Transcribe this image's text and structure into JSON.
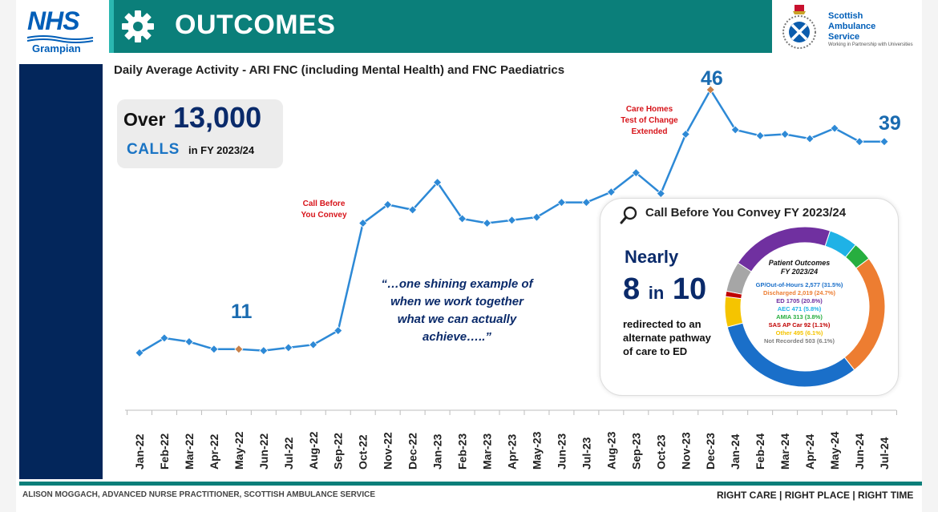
{
  "header": {
    "nhs_word": "NHS",
    "nhs_sub": "Grampian",
    "title": "OUTCOMES",
    "sas_name_lines": [
      "Scottish",
      "Ambulance",
      "Service"
    ],
    "sas_tagline": "Working in Partnership with Universities"
  },
  "calls_box": {
    "over": "Over",
    "number": "13,000",
    "calls": "CALLS",
    "period": "in FY 2023/24"
  },
  "annotations": {
    "call_before_you_convey": [
      "Call  Before",
      "You Convey"
    ],
    "care_homes": [
      "Care Homes",
      "Test of Change",
      "Extended"
    ]
  },
  "quote": "“…one shining example of when we work together what we can actually achieve…..”",
  "cbyc_panel": {
    "title": "Call Before You Convey FY 2023/24",
    "nearly": "Nearly",
    "eight": "8",
    "in": "in",
    "ten": "10",
    "redirect_text": "redirected to an alternate pathway of care to ED",
    "donut": {
      "title_lines": [
        "Patient Outcomes",
        "FY 2023/24"
      ],
      "segments": [
        {
          "label": "GP/Out-of-Hours 2,577 (31.5%)",
          "value": 31.5,
          "color": "#1a6fc9"
        },
        {
          "label": "Discharged 2,019 (24.7%)",
          "value": 24.7,
          "color": "#ed7d31"
        },
        {
          "label": "ED 1705 (20.8%)",
          "value": 20.8,
          "color": "#7030a0"
        },
        {
          "label": "AEC 471 (5.8%)",
          "value": 5.8,
          "color": "#1fb2e6"
        },
        {
          "label": "AMIA 313 (3.8%)",
          "value": 3.8,
          "color": "#27ae3f"
        },
        {
          "label": "SAS AP Car 92 (1.1%)",
          "value": 1.1,
          "color": "#c00000"
        },
        {
          "label": "Other 495 (6.1%)",
          "value": 6.1,
          "color": "#f5c400"
        },
        {
          "label": "Not Recorded 503 (6.1%)",
          "value": 6.1,
          "color": "#a6a6a6"
        }
      ],
      "ring_order": [
        3,
        4,
        1,
        0,
        6,
        5,
        7,
        2
      ]
    }
  },
  "footer": {
    "left": "ALISON MOGGACH, ADVANCED NURSE PRACTITIONER, SCOTTISH AMBULANCE SERVICE",
    "right": "RIGHT CARE | RIGHT PLACE | RIGHT TIME"
  },
  "chart_data": {
    "type": "line",
    "title": "Daily Average Activity - ARI FNC (including Mental Health) and FNC Paediatrics",
    "xlabel": "",
    "ylabel": "",
    "grid": false,
    "categories": [
      "Jan-22",
      "Feb-22",
      "Mar-22",
      "Apr-22",
      "May-22",
      "Jun-22",
      "Jul-22",
      "Aug-22",
      "Sep-22",
      "Oct-22",
      "Nov-22",
      "Dec-22",
      "Jan-23",
      "Feb-23",
      "Mar-23",
      "Apr-23",
      "May-23",
      "Jun-23",
      "Jul-23",
      "Aug-23",
      "Sep-23",
      "Oct-23",
      "Nov-23",
      "Dec-23",
      "Jan-24",
      "Feb-24",
      "Mar-24",
      "Apr-24",
      "May-24",
      "Jun-24",
      "Jul-24"
    ],
    "values": [
      10.5,
      12.5,
      12,
      11,
      11,
      10.8,
      11.2,
      11.6,
      13.5,
      28,
      30.5,
      29.8,
      33.5,
      28.6,
      28,
      28.4,
      28.8,
      30.8,
      30.8,
      32.2,
      34.8,
      32,
      40,
      46,
      40.6,
      39.8,
      40,
      39.4,
      40.8,
      39,
      39
    ],
    "ylim": [
      0,
      50
    ],
    "highlighted_points": [
      {
        "category": "May-22",
        "value": 11,
        "label": "11"
      },
      {
        "category": "Dec-23",
        "value": 46,
        "label": "46"
      },
      {
        "category": "Jul-24",
        "value": 39,
        "label": "39"
      }
    ],
    "annotations": [
      {
        "category": "Oct-22",
        "text": "Call Before You Convey"
      },
      {
        "category": "Nov-23",
        "text": "Care Homes Test of Change Extended"
      }
    ]
  }
}
